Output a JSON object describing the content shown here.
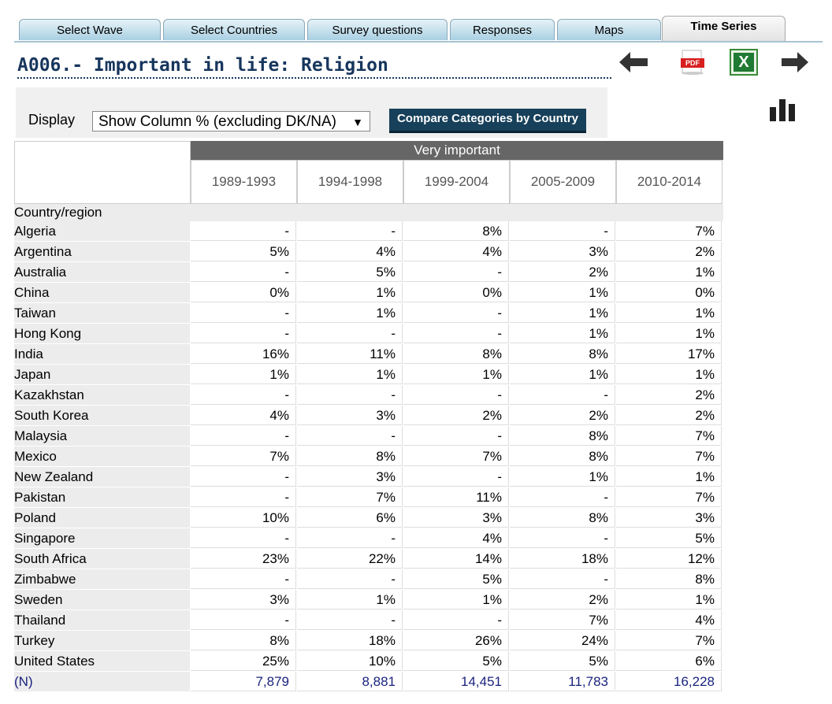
{
  "tabs": [
    {
      "label": "Select Wave",
      "active": false
    },
    {
      "label": "Select Countries",
      "active": false
    },
    {
      "label": "Survey questions",
      "active": false
    },
    {
      "label": "Responses",
      "active": false
    },
    {
      "label": "Maps",
      "active": false
    },
    {
      "label": "Time Series",
      "active": true
    }
  ],
  "title": "A006.- Important in life: Religion",
  "toolbar": {
    "icons": [
      "arrow-left-icon",
      "pdf-icon",
      "excel-icon",
      "arrow-right-icon",
      "bar-chart-icon"
    ],
    "pdf_text": "PDF",
    "excel_text": "X"
  },
  "display": {
    "label": "Display",
    "selected": "Show Column % (excluding DK/NA)",
    "compare_button": "Compare Categories by Country"
  },
  "table": {
    "category": "Very important",
    "years": [
      "1989-1993",
      "1994-1998",
      "1999-2004",
      "2005-2009",
      "2010-2014"
    ],
    "row_header": "Country/region",
    "rows": [
      {
        "name": "Algeria",
        "values": [
          "-",
          "-",
          "8%",
          "-",
          "7%"
        ]
      },
      {
        "name": "Argentina",
        "values": [
          "5%",
          "4%",
          "4%",
          "3%",
          "2%"
        ]
      },
      {
        "name": "Australia",
        "values": [
          "-",
          "5%",
          "-",
          "2%",
          "1%"
        ]
      },
      {
        "name": "China",
        "values": [
          "0%",
          "1%",
          "0%",
          "1%",
          "0%"
        ]
      },
      {
        "name": "Taiwan",
        "values": [
          "-",
          "1%",
          "-",
          "1%",
          "1%"
        ]
      },
      {
        "name": "Hong Kong",
        "values": [
          "-",
          "-",
          "-",
          "1%",
          "1%"
        ]
      },
      {
        "name": "India",
        "values": [
          "16%",
          "11%",
          "8%",
          "8%",
          "17%"
        ]
      },
      {
        "name": "Japan",
        "values": [
          "1%",
          "1%",
          "1%",
          "1%",
          "1%"
        ]
      },
      {
        "name": "Kazakhstan",
        "values": [
          "-",
          "-",
          "-",
          "-",
          "2%"
        ]
      },
      {
        "name": "South Korea",
        "values": [
          "4%",
          "3%",
          "2%",
          "2%",
          "2%"
        ]
      },
      {
        "name": "Malaysia",
        "values": [
          "-",
          "-",
          "-",
          "8%",
          "7%"
        ]
      },
      {
        "name": "Mexico",
        "values": [
          "7%",
          "8%",
          "7%",
          "8%",
          "7%"
        ]
      },
      {
        "name": "New Zealand",
        "values": [
          "-",
          "3%",
          "-",
          "1%",
          "1%"
        ]
      },
      {
        "name": "Pakistan",
        "values": [
          "-",
          "7%",
          "11%",
          "-",
          "7%"
        ]
      },
      {
        "name": "Poland",
        "values": [
          "10%",
          "6%",
          "3%",
          "8%",
          "3%"
        ]
      },
      {
        "name": "Singapore",
        "values": [
          "-",
          "-",
          "4%",
          "-",
          "5%"
        ]
      },
      {
        "name": "South Africa",
        "values": [
          "23%",
          "22%",
          "14%",
          "18%",
          "12%"
        ]
      },
      {
        "name": "Zimbabwe",
        "values": [
          "-",
          "-",
          "5%",
          "-",
          "8%"
        ]
      },
      {
        "name": "Sweden",
        "values": [
          "3%",
          "1%",
          "1%",
          "2%",
          "1%"
        ]
      },
      {
        "name": "Thailand",
        "values": [
          "-",
          "-",
          "-",
          "7%",
          "4%"
        ]
      },
      {
        "name": "Turkey",
        "values": [
          "8%",
          "18%",
          "26%",
          "24%",
          "7%"
        ]
      },
      {
        "name": "United States",
        "values": [
          "25%",
          "10%",
          "5%",
          "5%",
          "6%"
        ]
      }
    ],
    "n_row": {
      "name": "(N)",
      "values": [
        "7,879",
        "8,881",
        "14,451",
        "11,783",
        "16,228"
      ]
    }
  },
  "colors": {
    "title": "#17365d",
    "button": "#17405a",
    "header_bar": "#666666",
    "n_row": "#1a237e"
  }
}
